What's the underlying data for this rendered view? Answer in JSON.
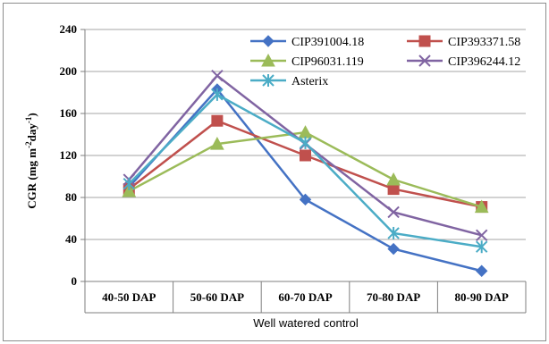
{
  "chart_data": {
    "type": "line",
    "title": "",
    "ylabel_main": "CGR (mg m",
    "ylabel_sup1": "-2",
    "ylabel_mid": "day",
    "ylabel_sup2": "-1",
    "ylabel_end": ")",
    "xlabel": "Well watered control",
    "ylim": [
      0,
      240
    ],
    "yticks": [
      0,
      40,
      80,
      120,
      160,
      200,
      240
    ],
    "categories": [
      "40-50 DAP",
      "50-60 DAP",
      "60-70 DAP",
      "70-80 DAP",
      "80-90 DAP"
    ],
    "grid": "horizontal",
    "legend_position": "top-right",
    "series": [
      {
        "name": "CIP391004.18",
        "color": "#4472c4",
        "marker": "diamond",
        "values": [
          90,
          183,
          78,
          31,
          10
        ]
      },
      {
        "name": "CIP393371.58",
        "color": "#c0504d",
        "marker": "square",
        "values": [
          88,
          153,
          120,
          88,
          71
        ]
      },
      {
        "name": "CIP96031.119",
        "color": "#9bbb59",
        "marker": "triangle",
        "values": [
          86,
          131,
          142,
          97,
          71
        ]
      },
      {
        "name": "CIP396244.12",
        "color": "#8064a2",
        "marker": "x",
        "values": [
          97,
          196,
          131,
          66,
          44
        ]
      },
      {
        "name": "Asterix",
        "color": "#4bacc6",
        "marker": "star",
        "values": [
          93,
          178,
          132,
          46,
          33
        ]
      }
    ]
  }
}
